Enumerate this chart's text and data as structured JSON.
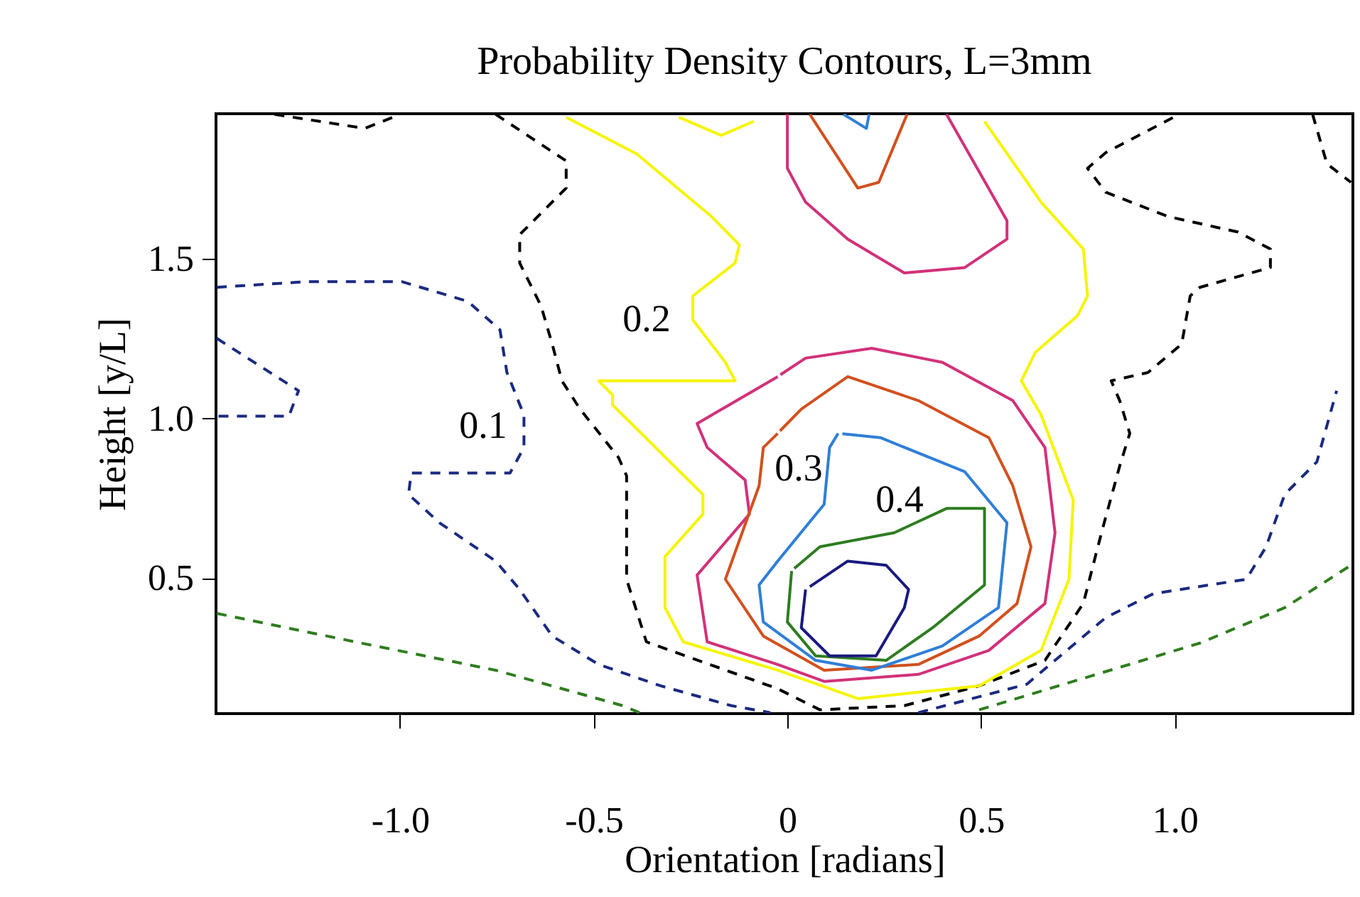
{
  "chart_data": {
    "type": "line",
    "title": "Probability Density Contours, L=3mm",
    "xlabel": "Orientation [radians]",
    "ylabel": "Height [y/L]",
    "xlim": [
      -1.475,
      1.46
    ],
    "ylim": [
      0.075,
      1.955
    ],
    "xticks": [
      {
        "value": -1,
        "label": "-1.0"
      },
      -0.5,
      0,
      0.5,
      {
        "value": 1,
        "label": "1.0"
      }
    ],
    "yticks": [
      0.5,
      {
        "value": 1,
        "label": "1.0"
      },
      1.5
    ],
    "grid": false,
    "marker": "none",
    "annotations": [
      "0.1",
      "0.2",
      "0.3",
      "0.4"
    ],
    "series": [
      {
        "color": "#2e7d1e",
        "line_style": "dashed",
        "x": [
          -1.473,
          -1.116,
          -0.753,
          -0.425,
          -0.382
        ],
        "values": [
          0.389,
          0.3,
          0.211,
          0.1,
          0.078
        ]
      },
      {
        "color": "#2e7d1e",
        "line_style": "dashed",
        "x": [
          0.495,
          0.738,
          1.065,
          1.284,
          1.455
        ],
        "values": [
          0.087,
          0.176,
          0.296,
          0.407,
          0.54
        ]
      },
      {
        "color": "#1a2a80",
        "line_style": "dashed",
        "x": [
          -1.473,
          -1.236,
          -0.996,
          -0.825,
          -0.742,
          -0.724,
          -0.68,
          -0.68,
          -0.716,
          -0.971,
          -0.978,
          -0.898,
          -0.753,
          -0.691,
          -0.607,
          -0.487,
          -0.327,
          -0.145,
          -0.044
        ],
        "values": [
          1.411,
          1.429,
          1.429,
          1.367,
          1.278,
          1.144,
          1.011,
          0.909,
          0.829,
          0.829,
          0.762,
          0.673,
          0.553,
          0.464,
          0.318,
          0.229,
          0.162,
          0.1,
          0.078
        ]
      },
      {
        "color": "#1a2a80",
        "line_style": "dashed",
        "x": [
          -1.473,
          -1.262,
          -1.287,
          -1.473
        ],
        "values": [
          1.251,
          1.087,
          1.007,
          1.007
        ]
      },
      {
        "color": "#1a2a80",
        "line_style": "dashed",
        "x": [
          0.338,
          0.618,
          0.822,
          0.945,
          1.185,
          1.236,
          1.284,
          1.367,
          1.418
        ],
        "values": [
          0.078,
          0.167,
          0.376,
          0.451,
          0.496,
          0.598,
          0.762,
          0.864,
          1.087
        ]
      },
      {
        "color": "#000000",
        "line_style": "dashed",
        "x": [
          -0.753,
          -0.571,
          -0.571,
          -0.691,
          -0.691,
          -0.636,
          -0.607,
          -0.582,
          -0.535,
          -0.436,
          -0.415,
          -0.415,
          -0.364,
          -0.025,
          0.084,
          0.302,
          0.495,
          0.665,
          0.764,
          0.811,
          0.858,
          0.884,
          0.858,
          0.836,
          0.931,
          1.018,
          1.04,
          1.065,
          1.247,
          1.247,
          1.164,
          0.982,
          0.822,
          0.775,
          0.822,
          1.011
        ],
        "values": [
          1.953,
          1.807,
          1.722,
          1.576,
          1.487,
          1.353,
          1.233,
          1.118,
          1.029,
          0.878,
          0.82,
          0.496,
          0.3,
          0.153,
          0.087,
          0.1,
          0.162,
          0.242,
          0.42,
          0.642,
          0.851,
          0.953,
          1.056,
          1.118,
          1.144,
          1.233,
          1.384,
          1.411,
          1.473,
          1.531,
          1.584,
          1.633,
          1.709,
          1.784,
          1.833,
          1.953
        ]
      },
      {
        "color": "#000000",
        "line_style": "dashed",
        "x": [
          -1.324,
          -1.091,
          -1.018
        ],
        "values": [
          1.953,
          1.909,
          1.944
        ]
      },
      {
        "color": "#000000",
        "line_style": "dashed",
        "x": [
          1.356,
          1.393,
          1.455
        ],
        "values": [
          1.953,
          1.798,
          1.74
        ]
      },
      {
        "color": "#f5f500",
        "line_style": "solid",
        "x": [
          -0.571,
          -0.389,
          -0.196,
          -0.124,
          -0.135,
          -0.244,
          -0.244,
          -0.16,
          -0.135,
          -0.487,
          -0.451,
          -0.451,
          -0.218,
          -0.218,
          -0.316,
          -0.316,
          -0.269,
          -0.025,
          0.182,
          0.495,
          0.655,
          0.727,
          0.738,
          0.655,
          0.604,
          0.64,
          0.749,
          0.775,
          0.764,
          0.655,
          0.509
        ],
        "values": [
          1.944,
          1.829,
          1.633,
          1.544,
          1.487,
          1.384,
          1.309,
          1.176,
          1.118,
          1.118,
          1.073,
          1.042,
          0.762,
          0.7,
          0.567,
          0.407,
          0.3,
          0.211,
          0.122,
          0.162,
          0.273,
          0.496,
          0.744,
          1.011,
          1.118,
          1.207,
          1.322,
          1.384,
          1.531,
          1.678,
          1.931
        ]
      },
      {
        "color": "#f5f500",
        "line_style": "solid",
        "x": [
          -0.28,
          -0.171,
          -0.087
        ],
        "values": [
          1.944,
          1.887,
          1.931
        ]
      },
      {
        "color": "#d2317a",
        "line_style": "solid",
        "x": [
          0,
          0,
          0.047,
          0.156,
          0.302,
          0.458,
          0.567,
          0.567,
          0.411
        ],
        "values": [
          1.953,
          1.784,
          1.678,
          1.562,
          1.456,
          1.473,
          1.562,
          1.62,
          1.953
        ]
      },
      {
        "color": "#d2317a",
        "line_style": "solid",
        "x": [
          -0.025,
          -0.233,
          -0.207,
          -0.109,
          -0.098,
          -0.233,
          -0.207,
          -0.025,
          0.095,
          0.338,
          0.52,
          0.665,
          0.691,
          0.665,
          0.582,
          0.4,
          0.218,
          0.047,
          -0.018
        ],
        "values": [
          1.131,
          0.984,
          0.909,
          0.807,
          0.7,
          0.509,
          0.3,
          0.229,
          0.176,
          0.198,
          0.273,
          0.42,
          0.642,
          0.909,
          1.056,
          1.176,
          1.22,
          1.189,
          1.137
        ]
      },
      {
        "color": "#d2501e",
        "line_style": "solid",
        "x": [
          0.058,
          0.182,
          0.236,
          0.309
        ],
        "values": [
          1.953,
          1.722,
          1.74,
          1.953
        ]
      },
      {
        "color": "#d2501e",
        "line_style": "solid",
        "x": [
          -0.025,
          -0.062,
          -0.073,
          -0.16,
          -0.062,
          0.095,
          0.338,
          0.495,
          0.593,
          0.629,
          0.582,
          0.52,
          0.338,
          0.156,
          0.036,
          -0.019
        ],
        "values": [
          0.953,
          0.909,
          0.789,
          0.496,
          0.318,
          0.211,
          0.229,
          0.318,
          0.42,
          0.598,
          0.789,
          0.94,
          1.056,
          1.131,
          1.029,
          0.961
        ]
      },
      {
        "color": "#2f7fd8",
        "line_style": "solid",
        "x": [
          0.145,
          0.204,
          0.211
        ],
        "values": [
          1.953,
          1.909,
          1.953
        ]
      },
      {
        "color": "#2f7fd8",
        "line_style": "solid",
        "x": [
          0.131,
          0.109,
          0.095,
          -0.025,
          -0.073,
          -0.062,
          0.073,
          0.218,
          0.4,
          0.545,
          0.567,
          0.458,
          0.24,
          0.142
        ],
        "values": [
          0.953,
          0.909,
          0.731,
          0.553,
          0.478,
          0.362,
          0.242,
          0.211,
          0.287,
          0.407,
          0.673,
          0.833,
          0.94,
          0.952
        ]
      },
      {
        "color": "#2e7d20",
        "line_style": "solid",
        "x": [
          0.011,
          0,
          0.073,
          0.255,
          0.375,
          0.509,
          0.509,
          0.411,
          0.276,
          0.084,
          0.018
        ],
        "values": [
          0.522,
          0.362,
          0.256,
          0.242,
          0.344,
          0.478,
          0.718,
          0.718,
          0.642,
          0.598,
          0.53
        ]
      },
      {
        "color": "#1a1a80",
        "line_style": "solid",
        "x": [
          0.047,
          0.036,
          0.109,
          0.229,
          0.302,
          0.313,
          0.255,
          0.156,
          0.058
        ],
        "values": [
          0.464,
          0.344,
          0.256,
          0.256,
          0.407,
          0.464,
          0.54,
          0.553,
          0.473
        ]
      }
    ]
  }
}
